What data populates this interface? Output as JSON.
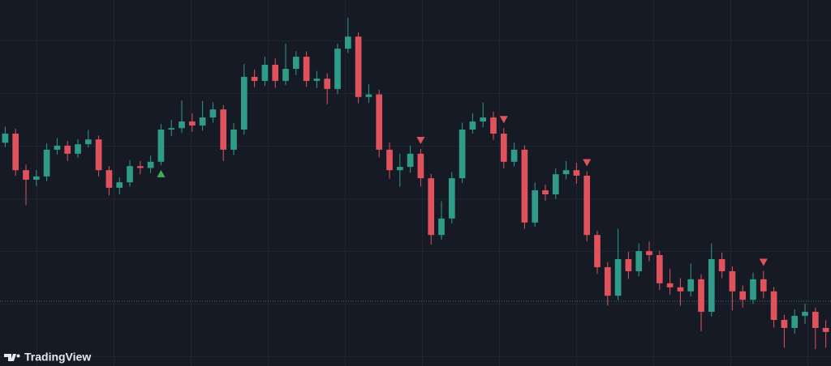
{
  "chart_data": {
    "type": "candlestick",
    "ylim": [
      0,
      100
    ],
    "up_color": "#2f9c8a",
    "down_color": "#e0535d",
    "buy_color": "#3fae5a",
    "open": [
      61.0,
      63.5,
      53.5,
      50.9,
      51.8,
      59.1,
      60.2,
      58.0,
      60.6,
      61.9,
      53.5,
      48.7,
      50.2,
      54.6,
      54.1,
      55.8,
      64.6,
      65.0,
      66.8,
      65.7,
      67.9,
      70.1,
      59.1,
      64.6,
      79.0,
      77.9,
      82.3,
      77.9,
      81.2,
      84.5,
      77.9,
      78.5,
      75.7,
      86.7,
      90.0,
      73.5,
      74.2,
      59.1,
      53.5,
      54.4,
      58.0,
      51.3,
      35.8,
      40.3,
      51.3,
      64.6,
      66.8,
      67.9,
      63.5,
      55.8,
      59.1,
      39.2,
      48.0,
      46.9,
      52.4,
      53.5,
      52.0,
      35.8,
      27.0,
      19.2,
      29.2,
      25.9,
      31.4,
      30.3,
      22.6,
      21.5,
      20.4,
      23.7,
      14.8,
      29.2,
      25.9,
      20.4,
      18.1,
      23.7,
      20.4,
      12.6,
      10.4,
      13.7,
      14.8,
      10.4
    ],
    "high": [
      65.4,
      64.8,
      55.0,
      53.6,
      60.8,
      62.3,
      61.5,
      62.0,
      64.5,
      63.0,
      54.6,
      51.5,
      56.3,
      56.0,
      57.5,
      66.1,
      67.2,
      72.5,
      69.0,
      72.4,
      72.0,
      71.3,
      66.3,
      82.5,
      81.0,
      84.5,
      84.0,
      88.0,
      86.0,
      86.0,
      80.6,
      80.0,
      88.0,
      95.2,
      91.2,
      77.0,
      75.5,
      61.0,
      58.0,
      60.2,
      59.3,
      52.5,
      45.0,
      53.0,
      66.5,
      69.0,
      72.0,
      69.5,
      65.0,
      61.0,
      60.3,
      50.1,
      49.5,
      54.0,
      56.0,
      55.5,
      53.2,
      37.0,
      28.4,
      37.5,
      31.2,
      33.5,
      34.0,
      31.5,
      26.5,
      24.0,
      28.0,
      25.0,
      33.5,
      31.0,
      27.2,
      22.0,
      25.5,
      26.0,
      21.6,
      14.0,
      15.5,
      17.0,
      16.0,
      12.5
    ],
    "low": [
      59.8,
      52.0,
      44.0,
      49.2,
      50.5,
      57.8,
      56.0,
      56.9,
      59.7,
      51.8,
      46.6,
      46.9,
      49.0,
      52.4,
      52.7,
      54.9,
      62.8,
      63.6,
      64.0,
      64.3,
      66.5,
      56.0,
      57.7,
      63.2,
      76.2,
      76.5,
      76.0,
      76.8,
      79.5,
      76.3,
      75.9,
      71.5,
      74.3,
      85.5,
      71.8,
      71.9,
      57.0,
      51.2,
      49.0,
      52.8,
      49.0,
      33.2,
      34.5,
      39.0,
      50.0,
      63.5,
      65.2,
      61.8,
      54.0,
      54.5,
      37.5,
      38.0,
      45.2,
      45.6,
      51.0,
      49.8,
      34.0,
      25.2,
      16.5,
      18.0,
      23.8,
      24.5,
      28.6,
      20.8,
      19.5,
      16.5,
      19.0,
      9.5,
      13.5,
      24.0,
      15.2,
      16.0,
      17.0,
      18.5,
      10.5,
      5.0,
      8.8,
      11.5,
      4.6,
      5.0
    ],
    "close": [
      63.5,
      53.5,
      50.9,
      51.8,
      59.1,
      60.2,
      58.0,
      60.6,
      61.9,
      53.5,
      48.7,
      50.2,
      54.6,
      54.1,
      55.8,
      64.6,
      65.0,
      66.8,
      65.7,
      67.9,
      70.1,
      59.1,
      64.6,
      79.0,
      77.9,
      82.3,
      77.9,
      81.2,
      84.5,
      77.9,
      78.5,
      75.7,
      86.7,
      90.0,
      73.5,
      74.2,
      59.1,
      53.5,
      54.4,
      58.0,
      51.3,
      35.8,
      40.3,
      51.3,
      64.6,
      66.8,
      67.9,
      63.5,
      55.8,
      59.1,
      39.2,
      48.0,
      46.9,
      52.4,
      53.5,
      52.0,
      35.8,
      27.0,
      19.2,
      29.2,
      25.9,
      31.4,
      30.3,
      22.6,
      21.5,
      20.4,
      23.7,
      14.8,
      29.2,
      25.9,
      20.4,
      18.1,
      23.7,
      20.4,
      12.6,
      10.4,
      13.7,
      14.8,
      10.4,
      9.3
    ],
    "buy_signals": [
      15
    ],
    "sell_signals": [
      40,
      48,
      56,
      73
    ],
    "price_line": 17.7,
    "watermark": "TradingView"
  }
}
